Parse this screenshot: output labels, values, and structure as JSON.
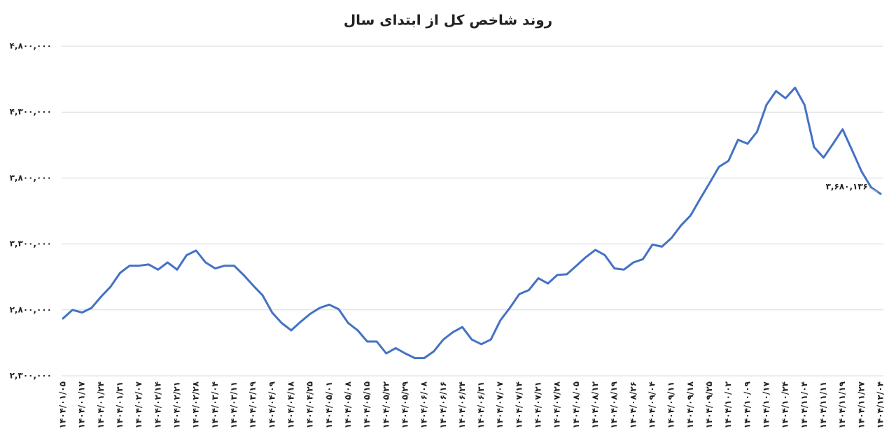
{
  "chart_data": {
    "type": "line",
    "title": "روند شاخص کل از ابتدای سال",
    "categories": [
      "۱۴۰۴/۰۱/۰۵",
      null,
      "۱۴۰۴/۰۱/۱۷",
      null,
      "۱۴۰۴/۰۱/۲۴",
      null,
      "۱۴۰۴/۰۱/۳۱",
      null,
      "۱۴۰۴/۰۲/۰۷",
      null,
      "۱۴۰۴/۰۲/۱۴",
      null,
      "۱۴۰۴/۰۲/۲۱",
      null,
      "۱۴۰۴/۰۲/۲۸",
      null,
      "۱۴۰۴/۰۳/۰۴",
      null,
      "۱۴۰۴/۰۳/۱۱",
      null,
      "۱۴۰۴/۰۳/۱۹",
      null,
      "۱۴۰۴/۰۴/۰۹",
      null,
      "۱۴۰۴/۰۴/۱۸",
      null,
      "۱۴۰۴/۰۴/۲۵",
      null,
      "۱۴۰۴/۰۵/۰۱",
      null,
      "۱۴۰۴/۰۵/۰۸",
      null,
      "۱۴۰۴/۰۵/۱۵",
      null,
      "۱۴۰۴/۰۵/۲۲",
      null,
      "۱۴۰۴/۰۵/۲۹",
      null,
      "۱۴۰۴/۰۶/۰۸",
      null,
      "۱۴۰۴/۰۶/۱۶",
      null,
      "۱۴۰۴/۰۶/۲۴",
      null,
      "۱۴۰۴/۰۶/۳۱",
      null,
      "۱۴۰۴/۰۷/۰۷",
      null,
      "۱۴۰۴/۰۷/۱۴",
      null,
      "۱۴۰۴/۰۷/۲۱",
      null,
      "۱۴۰۴/۰۷/۲۸",
      null,
      "۱۴۰۴/۰۸/۰۵",
      null,
      "۱۴۰۴/۰۸/۱۲",
      null,
      "۱۴۰۴/۰۸/۱۹",
      null,
      "۱۴۰۴/۰۸/۲۶",
      null,
      "۱۴۰۴/۰۹/۰۴",
      null,
      "۱۴۰۴/۰۹/۱۱",
      null,
      "۱۴۰۴/۰۹/۱۸",
      null,
      "۱۴۰۴/۰۹/۲۵",
      null,
      "۱۴۰۴/۱۰/۰۲",
      null,
      "۱۴۰۴/۱۰/۰۹",
      null,
      "۱۴۰۴/۱۰/۱۷",
      null,
      "۱۴۰۴/۱۰/۲۴",
      null,
      "۱۴۰۴/۱۱/۰۴",
      null,
      "۱۴۰۴/۱۱/۱۱",
      null,
      "۱۴۰۴/۱۱/۱۹",
      null,
      "۱۴۰۴/۱۱/۲۷",
      null,
      "۱۴۰۴/۱۲/۰۴"
    ],
    "values": [
      2735000,
      2800000,
      2780000,
      2815000,
      2900000,
      2975000,
      3080000,
      3135000,
      3135000,
      3145000,
      3105000,
      3160000,
      3105000,
      3215000,
      3250000,
      3160000,
      3115000,
      3135000,
      3135000,
      3065000,
      2985000,
      2910000,
      2780000,
      2700000,
      2645000,
      2710000,
      2770000,
      2815000,
      2840000,
      2805000,
      2700000,
      2645000,
      2560000,
      2560000,
      2470000,
      2510000,
      2470000,
      2435000,
      2435000,
      2485000,
      2575000,
      2630000,
      2670000,
      2575000,
      2540000,
      2575000,
      2720000,
      2815000,
      2920000,
      2950000,
      3040000,
      3000000,
      3065000,
      3070000,
      3135000,
      3200000,
      3255000,
      3215000,
      3115000,
      3105000,
      3160000,
      3185000,
      3295000,
      3280000,
      3345000,
      3440000,
      3515000,
      3640000,
      3760000,
      3885000,
      3930000,
      4090000,
      4060000,
      4150000,
      4355000,
      4460000,
      4405000,
      4485000,
      4355000,
      4035000,
      3955000,
      4060000,
      4170000,
      4010000,
      3850000,
      3730000,
      3680136
    ],
    "value_labels": [
      null,
      null,
      null,
      null,
      null,
      null,
      null,
      null,
      null,
      null,
      null,
      null,
      null,
      null,
      null,
      null,
      null,
      null,
      null,
      null,
      null,
      null,
      null,
      null,
      null,
      null,
      null,
      null,
      null,
      null,
      null,
      null,
      null,
      null,
      null,
      null,
      null,
      null,
      null,
      null,
      null,
      null,
      null,
      null,
      null,
      null,
      null,
      null,
      null,
      null,
      null,
      null,
      null,
      null,
      null,
      null,
      null,
      null,
      null,
      null,
      null,
      null,
      null,
      null,
      null,
      null,
      null,
      null,
      null,
      null,
      null,
      null,
      null,
      null,
      null,
      null,
      null,
      null,
      null,
      null,
      null,
      null,
      null,
      null,
      null,
      null,
      "۳,۶۸۰,۱۳۶"
    ],
    "color": "#4472c4",
    "ylim": [
      2300000,
      4800000
    ],
    "yticks": [
      {
        "value": 2300000,
        "label": "۲,۳۰۰,۰۰۰"
      },
      {
        "value": 2800000,
        "label": "۲,۸۰۰,۰۰۰"
      },
      {
        "value": 3300000,
        "label": "۳,۳۰۰,۰۰۰"
      },
      {
        "value": 3800000,
        "label": "۳,۸۰۰,۰۰۰"
      },
      {
        "value": 4300000,
        "label": "۴,۳۰۰,۰۰۰"
      },
      {
        "value": 4800000,
        "label": "۴,۸۰۰,۰۰۰"
      }
    ],
    "grid": true
  }
}
